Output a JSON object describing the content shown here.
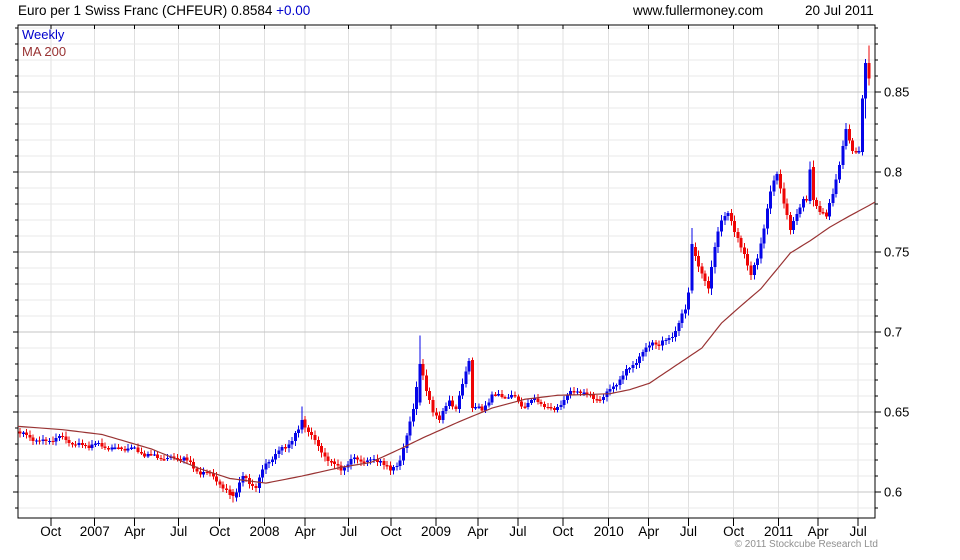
{
  "header": {
    "title": "Euro per 1 Swiss Franc (CHFEUR)",
    "quote": "0.8584",
    "change": "+0.00",
    "website": "www.fullermoney.com",
    "date": "20 Jul 2011"
  },
  "legend": {
    "series_label": "Weekly",
    "ma_label": "MA 200"
  },
  "footer": {
    "copyright": "© 2011 Stockcube Research Ltd"
  },
  "colors": {
    "up": "#0505e8",
    "down": "#ee0505",
    "ma_line": "#993333",
    "legend_weekly": "#0000cd",
    "legend_ma": "#993333",
    "grid_minor": "#e9e9e9",
    "grid_major": "#c4c4c4",
    "grid_vertical": "#e0e0e0",
    "frame": "#000000",
    "label": "#000000",
    "change_text": "#0000cd",
    "copyright_text": "#8f8f8f"
  },
  "chart_data": {
    "type": "candlestick",
    "timeframe": "weekly",
    "instrument": "CHFEUR",
    "title": "Euro per 1 Swiss Franc (CHFEUR)",
    "last_close": 0.8584,
    "weeks": 260,
    "span": "Jul 2006 - Jul 2011",
    "ylim": [
      0.5838,
      0.8919
    ],
    "y_major_ticks": [
      0.6,
      0.65,
      0.7,
      0.75,
      0.8,
      0.85
    ],
    "y_minor_step": 0.01,
    "grid": true,
    "legend_position": "top-left",
    "x_ticks": [
      [
        "Oct",
        9.4
      ],
      [
        "2007",
        22.8
      ],
      [
        "Apr",
        35
      ],
      [
        "Jul",
        48.4
      ],
      [
        "Oct",
        60.9
      ],
      [
        "2008",
        74.6
      ],
      [
        "Apr",
        87
      ],
      [
        "Jul",
        100.2
      ],
      [
        "Oct",
        113.2
      ],
      [
        "2009",
        126.9
      ],
      [
        "Apr",
        139.7
      ],
      [
        "Jul",
        151.9
      ],
      [
        "Oct",
        165.6
      ],
      [
        "2010",
        179.6
      ],
      [
        "Apr",
        191.8
      ],
      [
        "Jul",
        203.9
      ],
      [
        "Oct",
        217.7
      ],
      [
        "2011",
        231.4
      ],
      [
        "Apr",
        243.5
      ],
      [
        "Jul",
        255.7
      ]
    ],
    "close_anchors": [
      [
        0,
        0.636
      ],
      [
        7,
        0.632
      ],
      [
        12,
        0.634
      ],
      [
        17,
        0.629
      ],
      [
        23,
        0.6305
      ],
      [
        29,
        0.626
      ],
      [
        34,
        0.6275
      ],
      [
        40,
        0.623
      ],
      [
        45,
        0.62
      ],
      [
        50,
        0.6215
      ],
      [
        55,
        0.6125
      ],
      [
        59,
        0.61
      ],
      [
        62,
        0.601
      ],
      [
        65,
        0.5975
      ],
      [
        68,
        0.61
      ],
      [
        70,
        0.6065
      ],
      [
        72,
        0.603
      ],
      [
        75,
        0.617
      ],
      [
        78,
        0.623
      ],
      [
        82,
        0.631
      ],
      [
        85,
        0.639
      ],
      [
        86,
        0.645
      ],
      [
        89,
        0.635
      ],
      [
        91,
        0.627
      ],
      [
        95,
        0.618
      ],
      [
        98,
        0.6155
      ],
      [
        102,
        0.621
      ],
      [
        106,
        0.6185
      ],
      [
        110,
        0.62
      ],
      [
        113,
        0.6135
      ],
      [
        116,
        0.621
      ],
      [
        118,
        0.634
      ],
      [
        120,
        0.652
      ],
      [
        122,
        0.68
      ],
      [
        124,
        0.662
      ],
      [
        126,
        0.6515
      ],
      [
        128,
        0.646
      ],
      [
        131,
        0.658
      ],
      [
        133,
        0.6525
      ],
      [
        135,
        0.666
      ],
      [
        137,
        0.6825
      ],
      [
        138,
        0.6525
      ],
      [
        139,
        0.653
      ],
      [
        141,
        0.6505
      ],
      [
        144,
        0.662
      ],
      [
        147,
        0.6595
      ],
      [
        150,
        0.6605
      ],
      [
        153,
        0.6525
      ],
      [
        156,
        0.6575
      ],
      [
        160,
        0.6555
      ],
      [
        163,
        0.6505
      ],
      [
        167,
        0.66
      ],
      [
        171,
        0.6635
      ],
      [
        175,
        0.659
      ],
      [
        178,
        0.6595
      ],
      [
        181,
        0.6655
      ],
      [
        184,
        0.672
      ],
      [
        187,
        0.68
      ],
      [
        190,
        0.6875
      ],
      [
        193,
        0.695
      ],
      [
        195,
        0.691
      ],
      [
        198,
        0.696
      ],
      [
        200,
        0.7
      ],
      [
        203,
        0.715
      ],
      [
        204,
        0.726
      ],
      [
        205,
        0.755
      ],
      [
        207,
        0.7405
      ],
      [
        210,
        0.7285
      ],
      [
        212,
        0.752
      ],
      [
        214,
        0.7695
      ],
      [
        216,
        0.7755
      ],
      [
        218,
        0.762
      ],
      [
        221,
        0.7505
      ],
      [
        223,
        0.7355
      ],
      [
        225,
        0.746
      ],
      [
        227,
        0.7655
      ],
      [
        229,
        0.7865
      ],
      [
        231,
        0.799
      ],
      [
        233,
        0.7815
      ],
      [
        235,
        0.7635
      ],
      [
        237,
        0.7755
      ],
      [
        239,
        0.7835
      ],
      [
        240,
        0.782
      ],
      [
        241,
        0.8015
      ],
      [
        242,
        0.7825
      ],
      [
        244,
        0.7755
      ],
      [
        246,
        0.771
      ],
      [
        248,
        0.7875
      ],
      [
        250,
        0.8055
      ],
      [
        252,
        0.8265
      ],
      [
        254,
        0.8145
      ],
      [
        256,
        0.8125
      ],
      [
        257,
        0.846
      ],
      [
        258,
        0.868
      ],
      [
        259,
        0.8584
      ]
    ],
    "ma200_anchors": [
      [
        0,
        0.641
      ],
      [
        13,
        0.639
      ],
      [
        25,
        0.636
      ],
      [
        40,
        0.627
      ],
      [
        55,
        0.6145
      ],
      [
        64,
        0.6085
      ],
      [
        75,
        0.6056
      ],
      [
        86,
        0.61
      ],
      [
        98,
        0.6155
      ],
      [
        107,
        0.6185
      ],
      [
        116,
        0.627
      ],
      [
        123,
        0.634
      ],
      [
        134,
        0.644
      ],
      [
        144,
        0.6525
      ],
      [
        154,
        0.658
      ],
      [
        164,
        0.6605
      ],
      [
        174,
        0.661
      ],
      [
        180,
        0.6615
      ],
      [
        186,
        0.664
      ],
      [
        192,
        0.668
      ],
      [
        200,
        0.679
      ],
      [
        208,
        0.69
      ],
      [
        214,
        0.7056
      ],
      [
        220,
        0.7165
      ],
      [
        226,
        0.727
      ],
      [
        235,
        0.7494
      ],
      [
        241,
        0.757
      ],
      [
        247,
        0.7655
      ],
      [
        253,
        0.7725
      ],
      [
        261,
        0.7813
      ]
    ],
    "overrides": {
      "65": [
        0.6,
        0.602,
        0.5935,
        0.5975
      ],
      "86": [
        0.639,
        0.6535,
        0.6365,
        0.645
      ],
      "122": [
        0.656,
        0.698,
        0.654,
        0.68
      ],
      "138": [
        0.6825,
        0.684,
        0.65,
        0.6525
      ],
      "205": [
        0.726,
        0.765,
        0.724,
        0.755
      ],
      "241": [
        0.782,
        0.8065,
        0.78,
        0.8015
      ],
      "257": [
        0.8125,
        0.848,
        0.8105,
        0.846
      ],
      "258": [
        0.846,
        0.8705,
        0.8335,
        0.868
      ],
      "259": [
        0.868,
        0.879,
        0.854,
        0.8584
      ]
    }
  }
}
